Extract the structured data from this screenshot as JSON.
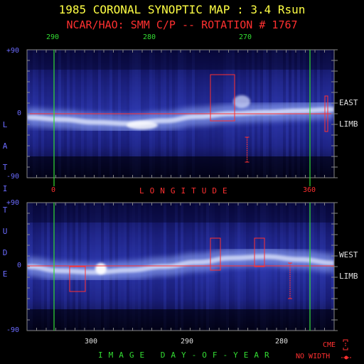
{
  "header": {
    "title": "1985 CORONAL SYNOPTIC MAP : 3.4 Rsun",
    "subtitle": "NCAR/HAO: SMM C/P -- ROTATION # 1767"
  },
  "chart_data": [
    {
      "type": "heatmap",
      "panel": "top",
      "side_label": "EAST",
      "side_label_2": "LIMB",
      "top_axis_label_text": [
        "290",
        "280",
        "270"
      ],
      "top_axis_ticks_doy": [
        290,
        280,
        270
      ],
      "bottom_axis_label": "LONGITUDE",
      "bottom_tick_labels": [
        "0",
        "360"
      ],
      "y_tick_labels": [
        "+90",
        "0",
        "-90"
      ],
      "ylim": [
        -90,
        90
      ],
      "streamer_belt_latitude_deg": [
        -5,
        -8,
        -12,
        -14,
        -10,
        -4,
        0,
        2,
        4,
        6
      ],
      "cme_markers": [
        {
          "kind": "box",
          "lon": [
            258,
            292
          ],
          "lat": [
            -10,
            55
          ]
        },
        {
          "kind": "no-width",
          "lon": [
            308,
            311
          ],
          "lat": [
            -68,
            -33
          ]
        },
        {
          "kind": "box",
          "lon": [
            419,
            423
          ],
          "lat": [
            -25,
            25
          ]
        }
      ]
    },
    {
      "type": "heatmap",
      "panel": "bottom",
      "side_label": "WEST",
      "side_label_2": "LIMB",
      "bottom_axis_label": "IMAGE DAY-OF-YEAR",
      "bottom_axis_label_text": [
        "300",
        "290",
        "280"
      ],
      "bottom_ticks_doy": [
        300,
        290,
        280
      ],
      "y_tick_labels": [
        "+90",
        "0",
        "-90"
      ],
      "ylim": [
        -90,
        90
      ],
      "streamer_belt_latitude_deg": [
        0,
        -6,
        -8,
        -5,
        0,
        6,
        12,
        14,
        10,
        5
      ],
      "cme_markers": [
        {
          "kind": "box",
          "lon": [
            60,
            82
          ],
          "lat": [
            -35,
            0
          ]
        },
        {
          "kind": "box",
          "lon": [
            258,
            272
          ],
          "lat": [
            -5,
            40
          ]
        },
        {
          "kind": "box",
          "lon": [
            320,
            334
          ],
          "lat": [
            0,
            40
          ]
        },
        {
          "kind": "no-width",
          "lon": [
            368,
            372
          ],
          "lat": [
            -45,
            5
          ]
        }
      ]
    }
  ],
  "axis": {
    "latitude_label": "LATITUDE"
  },
  "legend": {
    "cme_label": "CME",
    "no_width_label": "NO WIDTH"
  },
  "colors": {
    "background": "#000000",
    "map_base": "#1b1e7a",
    "title": "#ffff44",
    "subtitle": "#ff3030",
    "reference_line": "#ff3030",
    "green_marker": "#33dd33",
    "cme_box": "#ff3030"
  }
}
